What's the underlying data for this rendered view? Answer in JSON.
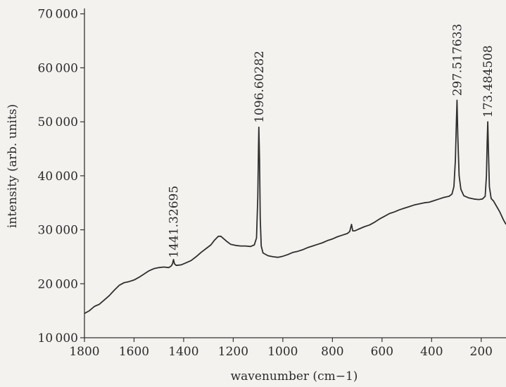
{
  "chart_data": {
    "type": "line",
    "title": "",
    "xlabel": "wavenumber (cm−1)",
    "ylabel": "intensity (arb. units)",
    "xlim": [
      1800,
      100
    ],
    "ylim": [
      10000,
      71000
    ],
    "x_reversed": true,
    "grid": false,
    "legend": "none",
    "line_color": "#2f2f2f",
    "xticks": [
      1800,
      1600,
      1400,
      1200,
      1000,
      800,
      600,
      400,
      200
    ],
    "xtick_labels": [
      "1800",
      "1600",
      "1400",
      "1200",
      "1000",
      "800",
      "600",
      "400",
      "200"
    ],
    "yticks": [
      10000,
      20000,
      30000,
      40000,
      50000,
      60000,
      70000
    ],
    "ytick_labels": [
      "10 000",
      "20 000",
      "30 000",
      "40 000",
      "50 000",
      "60 000",
      "70 000"
    ],
    "annotations": [
      {
        "text": "1441.32695",
        "x": 1441.3,
        "y": 24000
      },
      {
        "text": "1096.60282",
        "x": 1096.6,
        "y": 49000
      },
      {
        "text": "297.517633",
        "x": 297.5,
        "y": 54000
      },
      {
        "text": "173.484508",
        "x": 173.5,
        "y": 50000
      }
    ],
    "series": [
      {
        "points": [
          [
            1800,
            14500
          ],
          [
            1780,
            15000
          ],
          [
            1760,
            15800
          ],
          [
            1740,
            16200
          ],
          [
            1720,
            17000
          ],
          [
            1700,
            17800
          ],
          [
            1680,
            18800
          ],
          [
            1660,
            19700
          ],
          [
            1640,
            20200
          ],
          [
            1620,
            20400
          ],
          [
            1600,
            20700
          ],
          [
            1580,
            21200
          ],
          [
            1560,
            21800
          ],
          [
            1540,
            22400
          ],
          [
            1520,
            22800
          ],
          [
            1500,
            23000
          ],
          [
            1480,
            23100
          ],
          [
            1460,
            23000
          ],
          [
            1450,
            23300
          ],
          [
            1445,
            23700
          ],
          [
            1441,
            24500
          ],
          [
            1437,
            23700
          ],
          [
            1430,
            23400
          ],
          [
            1410,
            23500
          ],
          [
            1390,
            23900
          ],
          [
            1370,
            24300
          ],
          [
            1350,
            25000
          ],
          [
            1330,
            25800
          ],
          [
            1310,
            26500
          ],
          [
            1290,
            27200
          ],
          [
            1275,
            28100
          ],
          [
            1260,
            28800
          ],
          [
            1250,
            28800
          ],
          [
            1240,
            28400
          ],
          [
            1225,
            27800
          ],
          [
            1210,
            27300
          ],
          [
            1190,
            27100
          ],
          [
            1170,
            27000
          ],
          [
            1150,
            27000
          ],
          [
            1130,
            26900
          ],
          [
            1115,
            27200
          ],
          [
            1106,
            28500
          ],
          [
            1101,
            36000
          ],
          [
            1098,
            46000
          ],
          [
            1096.6,
            49000
          ],
          [
            1094,
            43000
          ],
          [
            1091,
            32000
          ],
          [
            1087,
            27000
          ],
          [
            1080,
            25700
          ],
          [
            1060,
            25200
          ],
          [
            1040,
            25000
          ],
          [
            1020,
            24900
          ],
          [
            1000,
            25100
          ],
          [
            980,
            25400
          ],
          [
            960,
            25800
          ],
          [
            940,
            26000
          ],
          [
            920,
            26300
          ],
          [
            900,
            26700
          ],
          [
            880,
            27000
          ],
          [
            860,
            27300
          ],
          [
            840,
            27600
          ],
          [
            820,
            28000
          ],
          [
            800,
            28300
          ],
          [
            780,
            28700
          ],
          [
            760,
            29000
          ],
          [
            740,
            29300
          ],
          [
            730,
            29700
          ],
          [
            723,
            31000
          ],
          [
            718,
            29800
          ],
          [
            710,
            29800
          ],
          [
            690,
            30200
          ],
          [
            670,
            30600
          ],
          [
            650,
            30900
          ],
          [
            630,
            31400
          ],
          [
            610,
            32000
          ],
          [
            590,
            32500
          ],
          [
            570,
            33000
          ],
          [
            550,
            33300
          ],
          [
            530,
            33700
          ],
          [
            510,
            34000
          ],
          [
            490,
            34300
          ],
          [
            470,
            34600
          ],
          [
            450,
            34800
          ],
          [
            430,
            35000
          ],
          [
            410,
            35100
          ],
          [
            390,
            35400
          ],
          [
            370,
            35700
          ],
          [
            350,
            36000
          ],
          [
            330,
            36200
          ],
          [
            318,
            36600
          ],
          [
            310,
            38000
          ],
          [
            304,
            43000
          ],
          [
            300,
            50000
          ],
          [
            297.5,
            54000
          ],
          [
            294,
            47000
          ],
          [
            289,
            40000
          ],
          [
            282,
            37500
          ],
          [
            270,
            36300
          ],
          [
            250,
            35900
          ],
          [
            230,
            35700
          ],
          [
            210,
            35600
          ],
          [
            195,
            35700
          ],
          [
            184,
            36200
          ],
          [
            179,
            40000
          ],
          [
            176,
            46000
          ],
          [
            173.5,
            50000
          ],
          [
            171,
            45000
          ],
          [
            167,
            38000
          ],
          [
            160,
            35800
          ],
          [
            150,
            35300
          ],
          [
            140,
            34500
          ],
          [
            125,
            33300
          ],
          [
            110,
            31800
          ],
          [
            100,
            31000
          ]
        ]
      }
    ]
  }
}
